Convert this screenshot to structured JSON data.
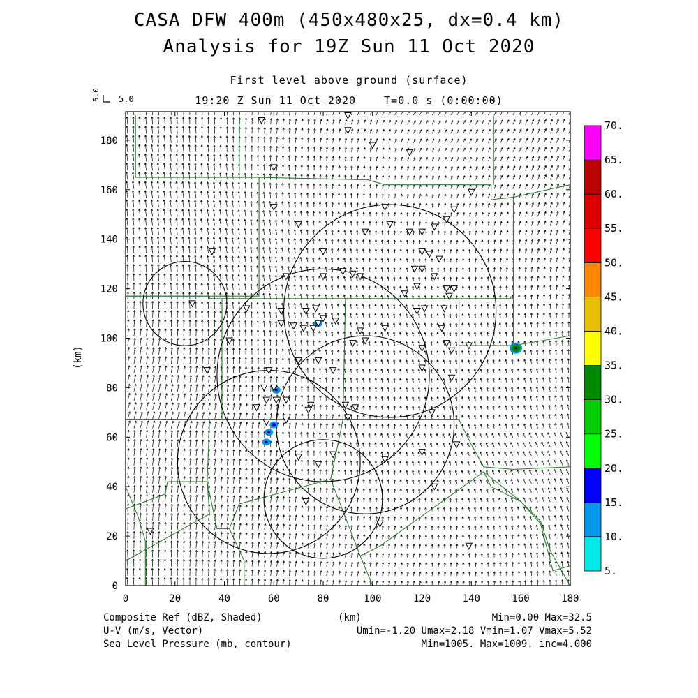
{
  "title": {
    "line1": "CASA DFW 400m (450x480x25, dx=0.4 km)",
    "line2": "Analysis for 19Z Sun 11 Oct 2020"
  },
  "subtitle": {
    "level": "First level above ground (surface)",
    "valid_time": "19:20 Z Sun 11 Oct 2020",
    "forecast_time": "T=0.0 s (0:00:00)"
  },
  "reference_vector": {
    "left_label": "5.0",
    "right_label": "5.0"
  },
  "axes": {
    "x_label": "(km)",
    "y_label": "(km)",
    "x_range": [
      0,
      180
    ],
    "y_range": [
      0,
      190
    ],
    "x_ticks": [
      "0",
      "20",
      "40",
      "60",
      "80",
      "100",
      "120",
      "140",
      "160",
      "180"
    ],
    "y_ticks": [
      "0",
      "20",
      "40",
      "60",
      "80",
      "100",
      "120",
      "140",
      "160",
      "180"
    ]
  },
  "colorbar": {
    "levels": [
      "5.",
      "10.",
      "15.",
      "20.",
      "25.",
      "30.",
      "35.",
      "40.",
      "45.",
      "50.",
      "55.",
      "60.",
      "65.",
      "70."
    ],
    "colors": [
      "#00e8e8",
      "#0099ee",
      "#0000ff",
      "#00ff00",
      "#00cc00",
      "#008800",
      "#ffff00",
      "#e8c000",
      "#ff8800",
      "#ff0000",
      "#dd0000",
      "#bb0000",
      "#ff00ff"
    ]
  },
  "footer": {
    "field1": "Composite Ref (dBZ, Shaded)",
    "field2": "U-V (m/s, Vector)",
    "field3": "Sea Level Pressure (mb, contour)",
    "xunit": "(km)",
    "stats1": "Min=0.00 Max=32.5",
    "stats2": "Umin=-1.20 Umax=2.18 Vmin=1.07 Vmax=5.52",
    "stats3": "Min=1005. Max=1009. inc=4.000"
  },
  "colors": {
    "county_lines": "#2e7d32",
    "contours": "#000000",
    "vectors": "#000000"
  },
  "radar_rings": [
    {
      "center_km": [
        24,
        114
      ],
      "radius_km": 17
    },
    {
      "center_km": [
        107,
        111
      ],
      "radius_km": 43
    },
    {
      "center_km": [
        80,
        85
      ],
      "radius_km": 43
    },
    {
      "center_km": [
        58,
        50
      ],
      "radius_km": 37
    },
    {
      "center_km": [
        97,
        65
      ],
      "radius_km": 36
    },
    {
      "center_km": [
        80,
        35
      ],
      "radius_km": 24
    }
  ],
  "reflectivity_echoes": [
    {
      "center_km": [
        78,
        106
      ],
      "dbz": 15
    },
    {
      "center_km": [
        158,
        96
      ],
      "dbz": 30
    },
    {
      "center_km": [
        60,
        65
      ],
      "dbz": 15
    },
    {
      "center_km": [
        61,
        79
      ],
      "dbz": 10
    },
    {
      "center_km": [
        57,
        58
      ],
      "dbz": 10
    },
    {
      "center_km": [
        58,
        62
      ],
      "dbz": 10
    }
  ],
  "stations_km": [
    [
      55,
      188
    ],
    [
      90,
      190
    ],
    [
      90,
      184
    ],
    [
      100,
      178
    ],
    [
      60,
      169
    ],
    [
      115,
      175
    ],
    [
      140,
      159
    ],
    [
      60,
      153
    ],
    [
      105,
      153
    ],
    [
      133,
      152
    ],
    [
      130,
      148
    ],
    [
      70,
      146
    ],
    [
      107,
      146
    ],
    [
      115,
      143
    ],
    [
      120,
      143
    ],
    [
      125,
      145
    ],
    [
      97,
      143
    ],
    [
      35,
      135
    ],
    [
      80,
      135
    ],
    [
      120,
      135
    ],
    [
      123,
      134
    ],
    [
      127,
      132
    ],
    [
      117,
      128
    ],
    [
      120,
      128
    ],
    [
      88,
      127
    ],
    [
      92,
      126
    ],
    [
      95,
      125
    ],
    [
      65,
      125
    ],
    [
      80,
      125
    ],
    [
      113,
      118
    ],
    [
      118,
      121
    ],
    [
      125,
      125
    ],
    [
      133,
      120
    ],
    [
      130,
      120
    ],
    [
      27,
      114
    ],
    [
      49,
      112
    ],
    [
      63,
      111
    ],
    [
      73,
      111
    ],
    [
      77,
      112
    ],
    [
      121,
      112
    ],
    [
      129,
      112
    ],
    [
      131,
      117
    ],
    [
      118,
      111
    ],
    [
      78,
      106
    ],
    [
      80,
      108
    ],
    [
      85,
      107
    ],
    [
      105,
      104
    ],
    [
      63,
      106
    ],
    [
      68,
      105
    ],
    [
      72,
      104
    ],
    [
      76,
      104
    ],
    [
      128,
      104
    ],
    [
      95,
      103
    ],
    [
      42,
      99
    ],
    [
      92,
      98
    ],
    [
      97,
      99
    ],
    [
      130,
      98
    ],
    [
      139,
      97
    ],
    [
      120,
      96
    ],
    [
      132,
      95
    ],
    [
      70,
      91
    ],
    [
      78,
      91
    ],
    [
      33,
      87
    ],
    [
      84,
      87
    ],
    [
      58,
      87
    ],
    [
      132,
      84
    ],
    [
      120,
      88
    ],
    [
      60,
      80
    ],
    [
      56,
      80
    ],
    [
      61,
      75
    ],
    [
      57,
      75
    ],
    [
      65,
      75
    ],
    [
      75,
      73
    ],
    [
      89,
      73
    ],
    [
      93,
      72
    ],
    [
      74,
      71
    ],
    [
      53,
      72
    ],
    [
      57,
      66
    ],
    [
      124,
      70
    ],
    [
      90,
      68
    ],
    [
      65,
      67
    ],
    [
      84,
      53
    ],
    [
      134,
      57
    ],
    [
      120,
      54
    ],
    [
      70,
      52
    ],
    [
      105,
      51
    ],
    [
      78,
      49
    ],
    [
      125,
      40
    ],
    [
      73,
      34
    ],
    [
      103,
      25
    ],
    [
      139,
      16
    ],
    [
      10,
      22
    ]
  ]
}
